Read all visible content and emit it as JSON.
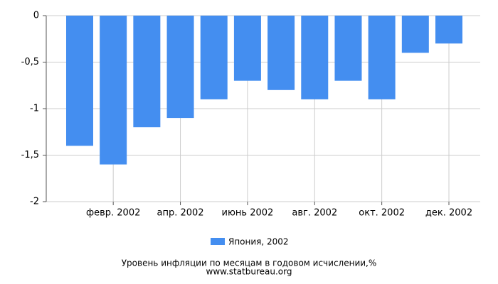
{
  "chart_data": {
    "type": "bar",
    "title": "Уровень инфляции по месяцам в годовом исчислении,%",
    "subtitle": "www.statbureau.org",
    "categories": [
      null,
      "февр. 2002",
      null,
      "апр. 2002",
      null,
      "июнь 2002",
      null,
      "авг. 2002",
      null,
      "окт. 2002",
      null,
      "дек. 2002"
    ],
    "series": [
      {
        "name": "Япония, 2002",
        "color": "#448ef0",
        "values": [
          -1.4,
          -1.6,
          -1.2,
          -1.1,
          -0.9,
          -0.7,
          -0.8,
          -0.9,
          -0.7,
          -0.9,
          -0.4,
          -0.3
        ]
      }
    ],
    "ylim": [
      -2,
      0
    ],
    "yticks": [
      0,
      {
        "value": -0.5,
        "label": "-0,5"
      },
      -1,
      {
        "value": -1.5,
        "label": "-1,5"
      },
      -2
    ],
    "grid": true
  }
}
